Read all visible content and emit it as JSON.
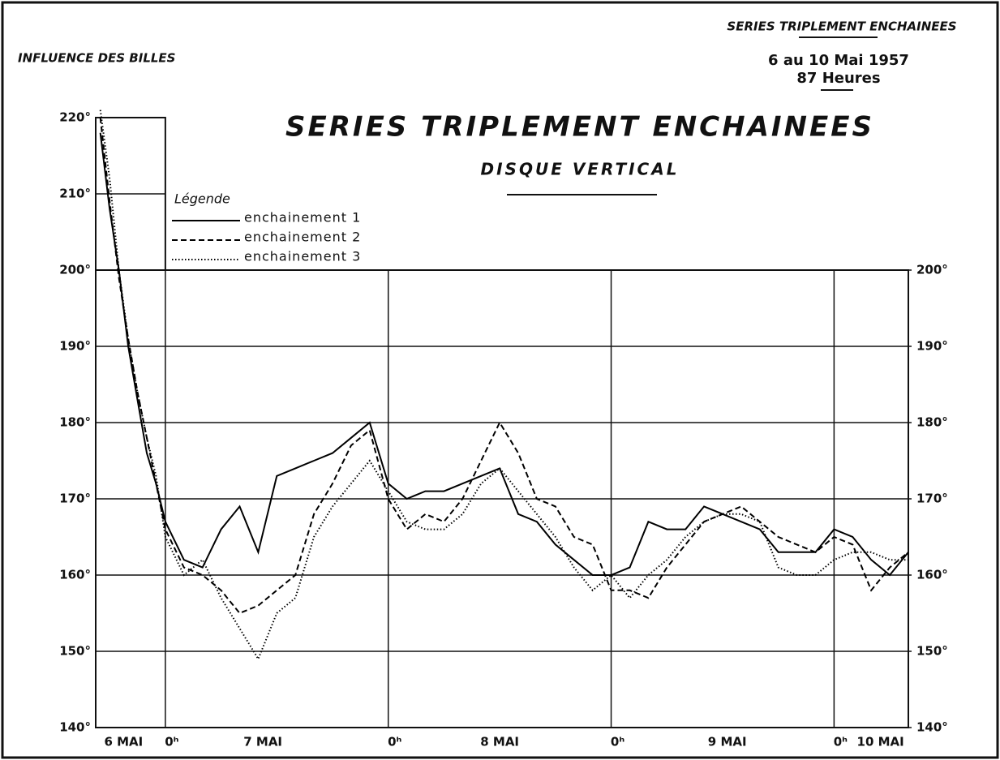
{
  "chart_data": {
    "type": "line",
    "title": "SERIES TRIPLEMENT ENCHAINEES",
    "subtitle": "DISQUE VERTICAL",
    "header_left": "INFLUENCE DES BILLES",
    "header_right": [
      "SERIES TRIPLEMENT ENCHAINEES",
      "6 au 10 Mai 1957",
      "87 Heures"
    ],
    "legend_title": "Légende",
    "x": [
      -7,
      -6,
      -5,
      -4,
      -3,
      -2,
      -1,
      0,
      2,
      4,
      6,
      8,
      10,
      12,
      14,
      16,
      18,
      20,
      22,
      24,
      26,
      28,
      30,
      32,
      34,
      36,
      38,
      40,
      42,
      44,
      46,
      48,
      50,
      52,
      54,
      56,
      58,
      60,
      62,
      64,
      66,
      68,
      70,
      72,
      74,
      76,
      78,
      80
    ],
    "series": [
      {
        "name": "enchainement 1",
        "color": "#000000",
        "line_style": "solid",
        "values": [
          218,
          208,
          200,
          190,
          183,
          176,
          172,
          167,
          162,
          161,
          166,
          169,
          163,
          173,
          174,
          175,
          176,
          178,
          180,
          172,
          170,
          171,
          171,
          172,
          173,
          174,
          168,
          167,
          164,
          162,
          160,
          160,
          161,
          167,
          166,
          166,
          169,
          168,
          167,
          166,
          163,
          163,
          163,
          166,
          165,
          162,
          160,
          163
        ]
      },
      {
        "name": "enchainement 2",
        "color": "#000000",
        "line_style": "dashed",
        "values": [
          220,
          209,
          199,
          191,
          184,
          178,
          172,
          166,
          161,
          160,
          158,
          155,
          156,
          158,
          160,
          168,
          172,
          177,
          179,
          170,
          166,
          168,
          167,
          170,
          175,
          180,
          176,
          170,
          169,
          165,
          164,
          158,
          158,
          157,
          161,
          164,
          167,
          168,
          169,
          167,
          165,
          164,
          163,
          165,
          164,
          158,
          161,
          163
        ]
      },
      {
        "name": "enchainement 3",
        "color": "#000000",
        "line_style": "dotted",
        "values": [
          221,
          212,
          200,
          191,
          184,
          178,
          173,
          165,
          160,
          162,
          157,
          153,
          149,
          155,
          157,
          165,
          169,
          172,
          175,
          171,
          167,
          166,
          166,
          168,
          172,
          174,
          171,
          168,
          165,
          161,
          158,
          160,
          157,
          160,
          162,
          165,
          167,
          168,
          168,
          167,
          161,
          160,
          160,
          162,
          163,
          163,
          162,
          162
        ]
      }
    ],
    "xlim": [
      -7.5,
      80
    ],
    "xticks": [
      {
        "value": 0,
        "label": "0ʰ"
      },
      {
        "value": 24,
        "label": "0ʰ"
      },
      {
        "value": 48,
        "label": "0ʰ"
      },
      {
        "value": 72,
        "label": "0ʰ"
      }
    ],
    "day_labels": [
      {
        "value": -4.5,
        "label": "6 MAI"
      },
      {
        "value": 10.5,
        "label": "7 MAI"
      },
      {
        "value": 36,
        "label": "8 MAI"
      },
      {
        "value": 60.5,
        "label": "9 MAI"
      },
      {
        "value": 77,
        "label": "10 MAI"
      }
    ],
    "ylim": [
      140,
      220
    ],
    "yticks": [
      {
        "value": 140,
        "label": "140°"
      },
      {
        "value": 150,
        "label": "150°"
      },
      {
        "value": 160,
        "label": "160°"
      },
      {
        "value": 170,
        "label": "170°"
      },
      {
        "value": 180,
        "label": "180°"
      },
      {
        "value": 190,
        "label": "190°"
      },
      {
        "value": 200,
        "label": "200°"
      },
      {
        "value": 210,
        "label": "210°"
      },
      {
        "value": 220,
        "label": "220°"
      }
    ],
    "y2lim": [
      140,
      220
    ],
    "y2ticks": [
      {
        "value": 140,
        "label": "140°"
      },
      {
        "value": 150,
        "label": "150°"
      },
      {
        "value": 160,
        "label": "160°"
      },
      {
        "value": 170,
        "label": "170°"
      },
      {
        "value": 180,
        "label": "180°"
      },
      {
        "value": 190,
        "label": "190°"
      },
      {
        "value": 200,
        "label": "200°"
      }
    ],
    "grid": true
  }
}
